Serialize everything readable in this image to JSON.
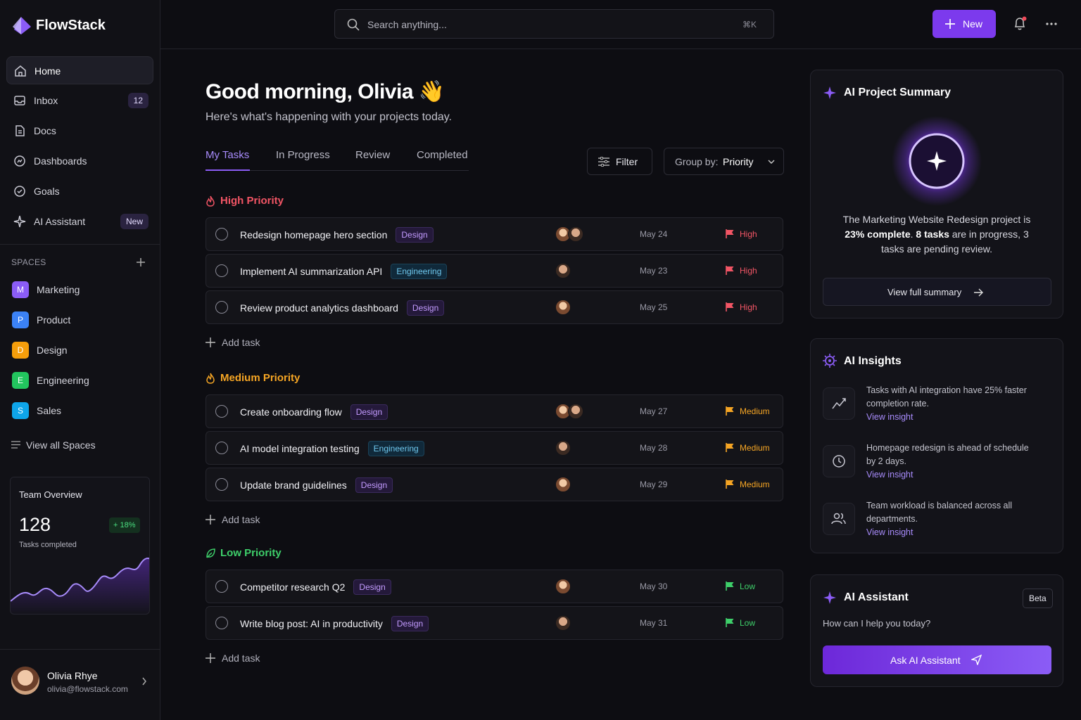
{
  "sidebar": {
    "brand": "FlowStack",
    "nav": [
      {
        "label": "Home"
      },
      {
        "label": "Inbox",
        "badge": "12"
      },
      {
        "label": "Docs"
      },
      {
        "label": "Dashboards"
      },
      {
        "label": "Goals"
      },
      {
        "label": "AI Assistant",
        "badge": "New"
      }
    ],
    "spaces_title": "SPACES",
    "spaces": [
      {
        "initial": "M",
        "name": "Marketing"
      },
      {
        "initial": "P",
        "name": "Product"
      },
      {
        "initial": "D",
        "name": "Design"
      },
      {
        "initial": "E",
        "name": "Engineering"
      },
      {
        "initial": "S",
        "name": "Sales"
      }
    ],
    "view_all": "View all Spaces",
    "team_overview": {
      "title": "Team Overview",
      "value": "128",
      "change": "+ 18%",
      "caption": "Tasks completed"
    },
    "user": {
      "name": "Olivia Rhye",
      "email": "olivia@flowstack.com"
    }
  },
  "topbar": {
    "search_placeholder": "Search anything...",
    "shortcut": "⌘K",
    "new_button": "New"
  },
  "main": {
    "greeting": "Good morning, Olivia 👋",
    "subtitle": "Here's what's happening with your projects today.",
    "tabs": [
      "My Tasks",
      "In Progress",
      "Review",
      "Completed"
    ],
    "filter": "Filter",
    "group_by_label": "Group by:",
    "group_by_value": "Priority",
    "groups": [
      {
        "title": "High Priority",
        "add_task": "Add task",
        "tasks": [
          {
            "title": "Redesign homepage hero section",
            "tag": "Design",
            "date": "May 24",
            "priority": "High"
          },
          {
            "title": "Implement AI summarization API",
            "tag": "Engineering",
            "date": "May 23",
            "priority": "High"
          },
          {
            "title": "Review product analytics dashboard",
            "tag": "Design",
            "date": "May 25",
            "priority": "High"
          }
        ]
      },
      {
        "title": "Medium Priority",
        "add_task": "Add task",
        "tasks": [
          {
            "title": "Create onboarding flow",
            "tag": "Design",
            "date": "May 27",
            "priority": "Medium"
          },
          {
            "title": "AI model integration testing",
            "tag": "Engineering",
            "date": "May 28",
            "priority": "Medium"
          },
          {
            "title": "Update brand guidelines",
            "tag": "Design",
            "date": "May 29",
            "priority": "Medium"
          }
        ]
      },
      {
        "title": "Low Priority",
        "add_task": "Add task",
        "tasks": [
          {
            "title": "Competitor research Q2",
            "tag": "Design",
            "date": "May 30",
            "priority": "Low"
          },
          {
            "title": "Write blog post: AI in productivity",
            "tag": "Design",
            "date": "May 31",
            "priority": "Low"
          }
        ]
      }
    ]
  },
  "right": {
    "summary": {
      "title": "AI Project Summary",
      "text": [
        "The Marketing Website Redesign project is ",
        "23% complete",
        ". ",
        "8 tasks",
        " are in progress, 3 tasks are pending review."
      ],
      "button": "View full summary"
    },
    "insights": {
      "title": "AI Insights",
      "items": [
        {
          "text": "Tasks with AI integration have 25% faster completion rate.",
          "link": "View insight"
        },
        {
          "text": "Homepage redesign is ahead of schedule by 2 days.",
          "link": "View insight"
        },
        {
          "text": "Team workload is balanced across all departments.",
          "link": "View insight"
        }
      ]
    },
    "assistant": {
      "title": "AI Assistant",
      "badge": "Beta",
      "prompt": "How can I help you today?",
      "button": "Ask AI Assistant"
    }
  }
}
